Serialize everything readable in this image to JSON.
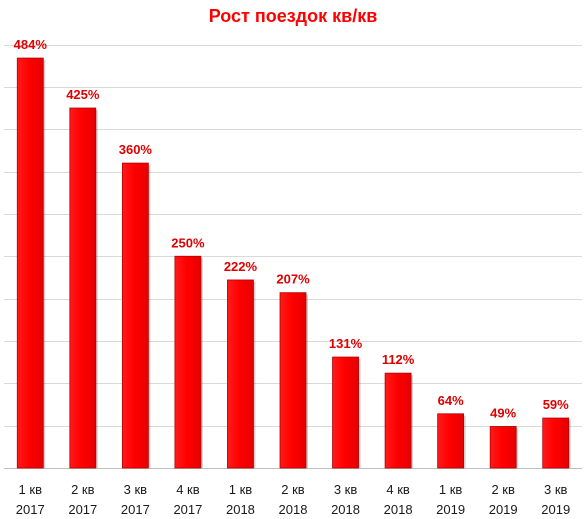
{
  "chart_data": {
    "type": "bar",
    "title": "Рост поездок кв/кв",
    "xlabel": "",
    "ylabel": "",
    "categories": [
      [
        "1 кв",
        "2017"
      ],
      [
        "2 кв",
        "2017"
      ],
      [
        "3 кв",
        "2017"
      ],
      [
        "4 кв",
        "2017"
      ],
      [
        "1 кв",
        "2018"
      ],
      [
        "2 кв",
        "2018"
      ],
      [
        "3 кв",
        "2018"
      ],
      [
        "4 кв",
        "2018"
      ],
      [
        "1 кв",
        "2019"
      ],
      [
        "2 кв",
        "2019"
      ],
      [
        "3 кв",
        "2019"
      ]
    ],
    "values": [
      484,
      425,
      360,
      250,
      222,
      207,
      131,
      112,
      64,
      49,
      59
    ],
    "data_labels": [
      "484%",
      "425%",
      "360%",
      "250%",
      "222%",
      "207%",
      "131%",
      "112%",
      "64%",
      "49%",
      "59%"
    ],
    "value_unit": "%",
    "ylim": [
      0,
      500
    ],
    "grid": true,
    "legend": "none",
    "colors": {
      "bar": "#ff0000",
      "bar_edge": "#b30000",
      "label": "#e00000",
      "title": "#ff0000",
      "grid": "#d9d9d9",
      "axis": "#bfbfbf"
    }
  }
}
